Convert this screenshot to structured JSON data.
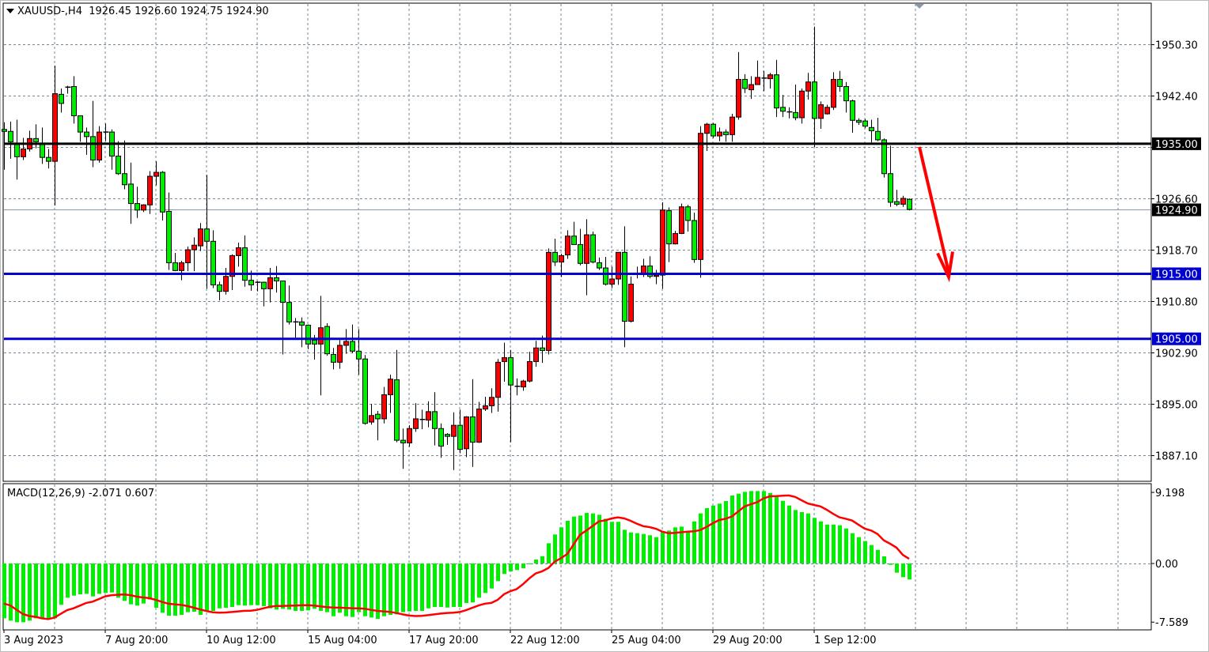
{
  "header": {
    "symbol": "XAUUSD-,H4",
    "ohlc": "1926.45 1926.60 1924.75 1924.90"
  },
  "macd_panel": {
    "title": "MACD(12,26,9) -2.071 0.607"
  },
  "colors": {
    "bull_candle": "#ff0000",
    "bear_candle": "#00ee00",
    "support_line": "#0000cc",
    "resistance_line": "#000000",
    "macd_histogram": "#00ee00",
    "signal_line": "#ff0000",
    "arrow": "#ff0000",
    "grid": "#778899"
  },
  "chart_data": [
    {
      "type": "candlestick",
      "title": "XAUUSD-,H4",
      "ylim": [
        1880.5,
        1957.5
      ],
      "grid": true,
      "y_ticks": [
        "1950.30",
        "1942.40",
        "1926.60",
        "1918.70",
        "1910.80",
        "1902.90",
        "1895.00",
        "1887.10"
      ],
      "x_labels": [
        {
          "bar": 0,
          "label": "3 Aug 2023"
        },
        {
          "bar": 16,
          "label": "7 Aug 20:00"
        },
        {
          "bar": 32,
          "label": "10 Aug 12:00"
        },
        {
          "bar": 48,
          "label": "15 Aug 04:00"
        },
        {
          "bar": 64,
          "label": "17 Aug 20:00"
        },
        {
          "bar": 80,
          "label": "22 Aug 12:00"
        },
        {
          "bar": 96,
          "label": "25 Aug 04:00"
        },
        {
          "bar": 112,
          "label": "29 Aug 20:00"
        },
        {
          "bar": 128,
          "label": "1 Sep 12:00"
        }
      ],
      "horizontal_levels": [
        {
          "price": 1935.0,
          "label": "1935.00",
          "color": "#000000"
        },
        {
          "price": 1915.0,
          "label": "1915.00",
          "color": "#0000cc"
        },
        {
          "price": 1905.0,
          "label": "1905.00",
          "color": "#0000cc"
        }
      ],
      "current_price": {
        "price": 1924.9,
        "label": "1924.90"
      },
      "annotation": {
        "type": "arrow",
        "direction": "down",
        "from_price": 1935.0,
        "to_price": 1915.0
      },
      "ohlc": [
        [
          1937.2,
          1938.3,
          1931.0,
          1936.9
        ],
        [
          1936.9,
          1938.4,
          1932.7,
          1935.3
        ],
        [
          1934.9,
          1938.7,
          1929.5,
          1933.0
        ],
        [
          1933.0,
          1935.9,
          1932.5,
          1934.2
        ],
        [
          1934.2,
          1937.0,
          1933.8,
          1935.8
        ],
        [
          1935.8,
          1938.0,
          1934.3,
          1935.3
        ],
        [
          1934.9,
          1937.5,
          1931.9,
          1932.9
        ],
        [
          1932.9,
          1934.2,
          1931.2,
          1932.3
        ],
        [
          1932.3,
          1947.0,
          1925.5,
          1942.7
        ],
        [
          1942.6,
          1943.5,
          1939.8,
          1941.2
        ],
        [
          1943.7,
          1943.9,
          1942.7,
          1943.7
        ],
        [
          1943.8,
          1945.4,
          1938.1,
          1939.3
        ],
        [
          1939.3,
          1939.3,
          1935.3,
          1936.8
        ],
        [
          1936.8,
          1937.5,
          1933.3,
          1936.1
        ],
        [
          1936.1,
          1941.6,
          1931.4,
          1932.5
        ],
        [
          1932.5,
          1937.7,
          1932.1,
          1936.8
        ],
        [
          1936.8,
          1938.1,
          1935.4,
          1936.8
        ],
        [
          1936.8,
          1937.2,
          1931.0,
          1933.1
        ],
        [
          1933.1,
          1935.4,
          1930.2,
          1930.4
        ],
        [
          1930.4,
          1935.5,
          1928.0,
          1928.7
        ],
        [
          1928.8,
          1932.1,
          1922.7,
          1925.8
        ],
        [
          1925.8,
          1928.4,
          1923.6,
          1924.8
        ],
        [
          1924.8,
          1925.7,
          1924.5,
          1925.6
        ],
        [
          1925.6,
          1930.8,
          1924.2,
          1930.0
        ],
        [
          1930.0,
          1932.3,
          1928.6,
          1930.6
        ],
        [
          1930.6,
          1930.8,
          1923.2,
          1924.5
        ],
        [
          1924.6,
          1927.5,
          1915.6,
          1916.7
        ],
        [
          1916.7,
          1918.2,
          1915.4,
          1915.5
        ],
        [
          1915.5,
          1917.0,
          1914.0,
          1916.7
        ],
        [
          1916.7,
          1919.2,
          1915.4,
          1918.7
        ],
        [
          1918.7,
          1920.6,
          1915.4,
          1919.4
        ],
        [
          1919.3,
          1922.8,
          1918.5,
          1921.9
        ],
        [
          1921.9,
          1930.2,
          1912.7,
          1920.0
        ],
        [
          1920.0,
          1921.7,
          1912.8,
          1913.3
        ],
        [
          1913.3,
          1913.8,
          1910.9,
          1912.3
        ],
        [
          1912.3,
          1915.9,
          1911.8,
          1914.6
        ],
        [
          1914.6,
          1918.0,
          1912.5,
          1917.8
        ],
        [
          1917.8,
          1919.8,
          1916.1,
          1919.0
        ],
        [
          1919.0,
          1920.9,
          1913.0,
          1914.0
        ],
        [
          1914.0,
          1915.5,
          1912.4,
          1913.3
        ],
        [
          1913.7,
          1913.9,
          1912.3,
          1913.7
        ],
        [
          1913.7,
          1913.8,
          1910.0,
          1912.7
        ],
        [
          1912.7,
          1915.9,
          1910.6,
          1914.4
        ],
        [
          1914.4,
          1916.2,
          1912.1,
          1913.9
        ],
        [
          1913.9,
          1913.9,
          1902.6,
          1910.6
        ],
        [
          1910.6,
          1913.2,
          1907.2,
          1907.6
        ],
        [
          1907.6,
          1908.2,
          1905.2,
          1907.6
        ],
        [
          1907.6,
          1908.3,
          1903.7,
          1907.1
        ],
        [
          1907.1,
          1907.2,
          1903.4,
          1904.2
        ],
        [
          1904.8,
          1905.6,
          1901.8,
          1904.2
        ],
        [
          1904.2,
          1911.6,
          1896.3,
          1906.7
        ],
        [
          1906.9,
          1907.4,
          1902.4,
          1902.7
        ],
        [
          1902.6,
          1903.6,
          1900.3,
          1901.4
        ],
        [
          1901.4,
          1904.8,
          1900.4,
          1904.0
        ],
        [
          1904.0,
          1906.5,
          1902.7,
          1904.6
        ],
        [
          1904.6,
          1907.2,
          1902.8,
          1903.1
        ],
        [
          1903.1,
          1906.5,
          1899.5,
          1901.9
        ],
        [
          1901.9,
          1902.5,
          1891.8,
          1892.0
        ],
        [
          1892.2,
          1895.0,
          1891.8,
          1893.2
        ],
        [
          1893.4,
          1893.9,
          1889.4,
          1892.7
        ],
        [
          1892.7,
          1897.6,
          1892.0,
          1896.4
        ],
        [
          1896.4,
          1899.5,
          1893.6,
          1898.8
        ],
        [
          1898.7,
          1903.3,
          1889.1,
          1889.4
        ],
        [
          1889.4,
          1891.2,
          1885.0,
          1889.0
        ],
        [
          1889.0,
          1891.7,
          1888.4,
          1891.2
        ],
        [
          1891.2,
          1895.1,
          1890.7,
          1892.7
        ],
        [
          1892.6,
          1894.1,
          1891.1,
          1892.6
        ],
        [
          1892.5,
          1895.4,
          1891.4,
          1893.8
        ],
        [
          1893.8,
          1896.8,
          1888.6,
          1891.2
        ],
        [
          1891.2,
          1892.0,
          1886.7,
          1888.5
        ],
        [
          1890.3,
          1890.5,
          1888.7,
          1890.0
        ],
        [
          1890.0,
          1893.7,
          1884.8,
          1891.7
        ],
        [
          1891.7,
          1894.1,
          1887.4,
          1888.0
        ],
        [
          1888.1,
          1893.1,
          1886.8,
          1893.0
        ],
        [
          1893.0,
          1898.8,
          1885.3,
          1889.1
        ],
        [
          1889.1,
          1895.3,
          1889.0,
          1894.2
        ],
        [
          1894.2,
          1896.1,
          1893.9,
          1894.7
        ],
        [
          1894.7,
          1897.4,
          1893.6,
          1896.0
        ],
        [
          1896.0,
          1901.9,
          1893.8,
          1901.4
        ],
        [
          1901.5,
          1904.4,
          1898.4,
          1902.1
        ],
        [
          1902.1,
          1903.3,
          1889.1,
          1897.9
        ],
        [
          1897.7,
          1898.9,
          1896.3,
          1897.7
        ],
        [
          1897.6,
          1898.7,
          1897.0,
          1898.5
        ],
        [
          1898.5,
          1903.0,
          1898.3,
          1901.5
        ],
        [
          1901.5,
          1904.7,
          1900.7,
          1903.6
        ],
        [
          1903.6,
          1905.5,
          1901.3,
          1903.2
        ],
        [
          1903.2,
          1918.9,
          1902.6,
          1918.3
        ],
        [
          1918.3,
          1920.4,
          1916.2,
          1916.8
        ],
        [
          1916.8,
          1918.1,
          1914.5,
          1917.8
        ],
        [
          1917.9,
          1921.7,
          1917.3,
          1920.8
        ],
        [
          1920.8,
          1923.0,
          1919.5,
          1919.5
        ],
        [
          1919.5,
          1921.9,
          1916.3,
          1916.6
        ],
        [
          1916.6,
          1923.4,
          1911.7,
          1921.0
        ],
        [
          1921.0,
          1921.5,
          1916.6,
          1916.8
        ],
        [
          1916.7,
          1917.5,
          1915.6,
          1915.9
        ],
        [
          1915.9,
          1917.6,
          1913.2,
          1913.4
        ],
        [
          1913.4,
          1916.1,
          1912.8,
          1914.2
        ],
        [
          1914.2,
          1918.3,
          1913.3,
          1918.3
        ],
        [
          1918.3,
          1922.3,
          1903.7,
          1907.7
        ],
        [
          1907.7,
          1914.6,
          1907.5,
          1913.4
        ],
        [
          1915.0,
          1916.1,
          1914.3,
          1915.0
        ],
        [
          1915.0,
          1917.3,
          1914.5,
          1916.2
        ],
        [
          1916.2,
          1917.7,
          1914.3,
          1914.6
        ],
        [
          1914.6,
          1915.6,
          1913.4,
          1914.8
        ],
        [
          1914.8,
          1926.0,
          1912.7,
          1924.8
        ],
        [
          1924.7,
          1925.2,
          1916.8,
          1919.6
        ],
        [
          1919.6,
          1921.6,
          1919.5,
          1921.2
        ],
        [
          1921.2,
          1925.8,
          1921.1,
          1925.3
        ],
        [
          1925.3,
          1925.6,
          1921.5,
          1923.2
        ],
        [
          1923.2,
          1924.4,
          1916.7,
          1917.2
        ],
        [
          1917.2,
          1937.7,
          1914.4,
          1936.6
        ],
        [
          1936.6,
          1938.2,
          1933.9,
          1938.0
        ],
        [
          1938.0,
          1938.2,
          1935.9,
          1936.2
        ],
        [
          1936.2,
          1937.5,
          1935.4,
          1936.8
        ],
        [
          1936.8,
          1937.2,
          1935.3,
          1936.4
        ],
        [
          1936.4,
          1939.6,
          1935.3,
          1939.1
        ],
        [
          1939.1,
          1949.1,
          1938.7,
          1944.9
        ],
        [
          1944.9,
          1945.7,
          1942.8,
          1943.5
        ],
        [
          1943.3,
          1945.4,
          1941.9,
          1944.1
        ],
        [
          1944.1,
          1947.8,
          1944.1,
          1945.2
        ],
        [
          1945.1,
          1946.2,
          1943.1,
          1945.1
        ],
        [
          1945.0,
          1945.9,
          1943.5,
          1945.6
        ],
        [
          1945.6,
          1947.9,
          1939.1,
          1940.5
        ],
        [
          1940.6,
          1942.5,
          1939.1,
          1940.0
        ],
        [
          1939.9,
          1940.6,
          1938.9,
          1939.9
        ],
        [
          1939.8,
          1944.1,
          1938.6,
          1939.0
        ],
        [
          1939.0,
          1943.5,
          1938.1,
          1943.1
        ],
        [
          1943.1,
          1945.9,
          1941.8,
          1944.5
        ],
        [
          1944.5,
          1953.0,
          1934.5,
          1938.9
        ],
        [
          1938.9,
          1941.5,
          1937.3,
          1941.0
        ],
        [
          1939.6,
          1941.0,
          1939.5,
          1940.6
        ],
        [
          1940.6,
          1946.0,
          1940.2,
          1944.9
        ],
        [
          1944.9,
          1946.2,
          1943.0,
          1943.8
        ],
        [
          1943.8,
          1944.5,
          1939.8,
          1941.6
        ],
        [
          1941.6,
          1941.8,
          1936.7,
          1938.6
        ],
        [
          1938.6,
          1938.9,
          1937.9,
          1938.3
        ],
        [
          1938.5,
          1938.8,
          1937.4,
          1937.7
        ],
        [
          1937.5,
          1938.7,
          1935.2,
          1937.0
        ],
        [
          1936.9,
          1939.0,
          1935.4,
          1935.6
        ],
        [
          1935.6,
          1935.8,
          1929.8,
          1930.4
        ],
        [
          1930.4,
          1934.7,
          1925.3,
          1926.0
        ],
        [
          1926.1,
          1927.9,
          1925.4,
          1925.7
        ],
        [
          1925.7,
          1927.0,
          1925.3,
          1926.6
        ],
        [
          1926.45,
          1926.6,
          1924.75,
          1924.9
        ]
      ]
    },
    {
      "type": "bar",
      "title": "MACD(12,26,9) -2.071 0.607",
      "ylim": [
        -7.589,
        9.198
      ],
      "y_ticks": [
        "9.198",
        "0.00",
        "-7.589"
      ],
      "macd_histogram": [
        -7.09,
        -7.4,
        -7.6,
        -7.6,
        -7.4,
        -7.1,
        -7.16,
        -7.1,
        -7.1,
        -5.35,
        -4.43,
        -4.16,
        -3.99,
        -3.92,
        -4.26,
        -3.92,
        -3.82,
        -3.75,
        -4.43,
        -4.84,
        -5.28,
        -5.45,
        -5.18,
        -4.67,
        -5.73,
        -6.37,
        -6.75,
        -6.75,
        -6.65,
        -6.3,
        -6.24,
        -6.65,
        -6.13,
        -6.13,
        -5.8,
        -5.73,
        -5.62,
        -5.39,
        -5.45,
        -5.39,
        -5.39,
        -5.52,
        -5.8,
        -5.96,
        -5.86,
        -5.96,
        -6.13,
        -6.13,
        -6.07,
        -5.86,
        -6.13,
        -6.3,
        -6.82,
        -6.37,
        -6.82,
        -6.92,
        -6.3,
        -6.82,
        -6.99,
        -7.16,
        -6.82,
        -6.65,
        -6.58,
        -6.3,
        -6.2,
        -6.13,
        -6.13,
        -5.8,
        -5.62,
        -5.62,
        -5.7,
        -5.62,
        -5.62,
        -5.11,
        -5.04,
        -4.43,
        -3.82,
        -3.24,
        -2.28,
        -1.36,
        -1.02,
        -0.85,
        -0.61,
        -0.07,
        0.51,
        0.95,
        2.62,
        3.75,
        4.67,
        5.52,
        6.07,
        6.2,
        6.54,
        6.48,
        6.3,
        5.79,
        5.39,
        5.39,
        4.36,
        4.02,
        3.92,
        3.82,
        3.65,
        3.41,
        4.19,
        4.26,
        4.67,
        4.77,
        4.19,
        5.45,
        6.48,
        7.16,
        7.5,
        7.74,
        8.08,
        8.79,
        9.03,
        9.27,
        9.37,
        9.37,
        9.37,
        9.13,
        8.69,
        8.11,
        7.5,
        6.92,
        6.65,
        6.48,
        5.9,
        5.45,
        5.04,
        5.04,
        4.94,
        4.53,
        3.92,
        3.41,
        2.9,
        2.39,
        1.77,
        0.92,
        -0.17,
        -1.19,
        -1.77,
        -2.071
      ],
      "signal_points": [
        [
          0,
          -5.18
        ],
        [
          4,
          -6.8
        ],
        [
          7,
          -7.2
        ],
        [
          11,
          -5.8
        ],
        [
          13,
          -5.1
        ],
        [
          17,
          -4.1
        ],
        [
          19,
          -4.0
        ],
        [
          22,
          -4.4
        ],
        [
          27,
          -5.3
        ],
        [
          34,
          -6.37
        ],
        [
          39,
          -6.1
        ],
        [
          43,
          -5.5
        ],
        [
          48,
          -5.4
        ],
        [
          52,
          -5.7
        ],
        [
          56,
          -5.8
        ],
        [
          60,
          -6.2
        ],
        [
          65,
          -6.8
        ],
        [
          71,
          -6.37
        ],
        [
          77,
          -5.1
        ],
        [
          80,
          -3.58
        ],
        [
          85,
          -1.02
        ],
        [
          88,
          0.68
        ],
        [
          92,
          4.26
        ],
        [
          94,
          5.45
        ],
        [
          97,
          5.96
        ],
        [
          102,
          4.7
        ],
        [
          105,
          3.92
        ],
        [
          109,
          4.16
        ],
        [
          114,
          5.79
        ],
        [
          118,
          7.67
        ],
        [
          121,
          8.69
        ],
        [
          124,
          8.8
        ],
        [
          128,
          7.57
        ],
        [
          133,
          5.79
        ],
        [
          137,
          4.26
        ],
        [
          140,
          2.56
        ],
        [
          143,
          0.607
        ]
      ]
    }
  ]
}
